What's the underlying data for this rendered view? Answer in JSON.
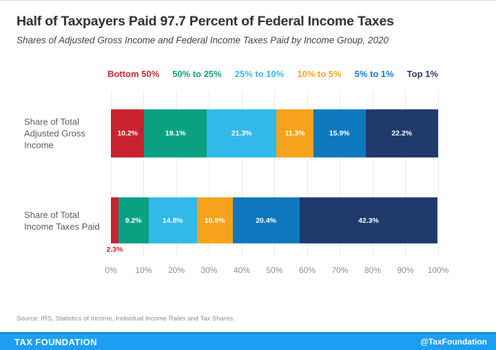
{
  "header": {
    "title": "Half of Taxpayers Paid 97.7 Percent of Federal Income Taxes",
    "subtitle": "Shares of Adjusted Gross Income and Federal Income Taxes Paid by Income Group, 2020"
  },
  "legend": [
    {
      "label": "Bottom 50%",
      "color": "#c8232f"
    },
    {
      "label": "50% to 25%",
      "color": "#0aa183"
    },
    {
      "label": "25% to 10%",
      "color": "#33b9e8"
    },
    {
      "label": "10% to 5%",
      "color": "#f6a21d"
    },
    {
      "label": "5% to 1%",
      "color": "#0e7abd"
    },
    {
      "label": "Top 1%",
      "color": "#203a6d"
    }
  ],
  "chart_data": {
    "type": "bar",
    "stacked": true,
    "orientation": "horizontal",
    "grid": true,
    "legend_position": "top",
    "categories": [
      "Share of Total Adjusted Gross Income",
      "Share of Total Income Taxes Paid"
    ],
    "series": [
      {
        "name": "Bottom 50%",
        "color": "#c8232f",
        "values": [
          10.2,
          2.3
        ]
      },
      {
        "name": "50% to 25%",
        "color": "#0aa183",
        "values": [
          19.1,
          9.2
        ]
      },
      {
        "name": "25% to 10%",
        "color": "#33b9e8",
        "values": [
          21.3,
          14.8
        ]
      },
      {
        "name": "10% to 5%",
        "color": "#f6a21d",
        "values": [
          11.3,
          10.9
        ]
      },
      {
        "name": "5% to 1%",
        "color": "#0e7abd",
        "values": [
          15.9,
          20.4
        ]
      },
      {
        "name": "Top 1%",
        "color": "#203a6d",
        "values": [
          22.2,
          42.3
        ]
      }
    ],
    "x_ticks": [
      "0%",
      "10%",
      "20%",
      "30%",
      "40%",
      "50%",
      "60%",
      "70%",
      "80%",
      "90%",
      "100%"
    ],
    "xlim": [
      0,
      100
    ],
    "value_suffix": "%",
    "outside_label_threshold": 5
  },
  "footer": {
    "source": "Source: IRS, Statistics of Income, Individual Income Rates and Tax Shares.",
    "brand": "TAX FOUNDATION",
    "handle": "@TaxFoundation",
    "bar_color": "#1d9ef0"
  }
}
